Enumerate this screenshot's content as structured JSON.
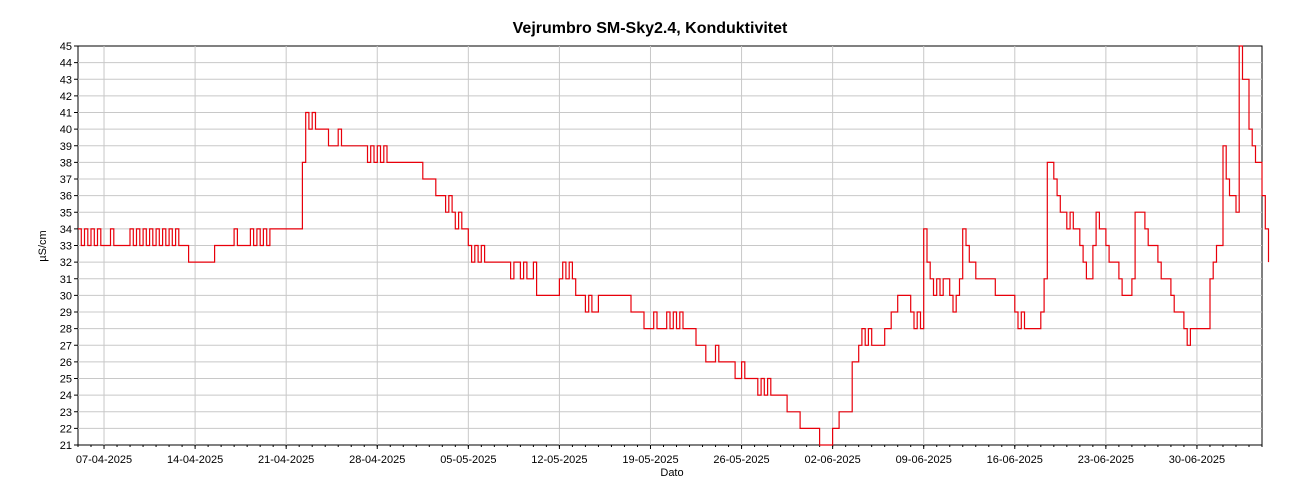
{
  "chart_data": {
    "type": "line",
    "title": "Vejrumbro SM-Sky2.4, Konduktivitet",
    "xlabel": "Dato",
    "ylabel": "µS/cm",
    "ylim": [
      21,
      45
    ],
    "y_ticks": [
      21,
      22,
      23,
      24,
      25,
      26,
      27,
      28,
      29,
      30,
      31,
      32,
      33,
      34,
      35,
      36,
      37,
      38,
      39,
      40,
      41,
      42,
      43,
      44,
      45
    ],
    "x_range": [
      "2025-04-05",
      "2025-07-05"
    ],
    "x_ticks": [
      "07-04-2025",
      "14-04-2025",
      "21-04-2025",
      "28-04-2025",
      "05-05-2025",
      "12-05-2025",
      "19-05-2025",
      "26-05-2025",
      "02-06-2025",
      "09-06-2025",
      "16-06-2025",
      "23-06-2025",
      "30-06-2025"
    ],
    "grid": true,
    "legend": "none",
    "series": [
      {
        "color": "#e8000b",
        "points": [
          [
            "2025-04-05 00:00",
            34
          ],
          [
            "2025-04-05 06:00",
            33
          ],
          [
            "2025-04-05 12:00",
            34
          ],
          [
            "2025-04-05 18:00",
            33
          ],
          [
            "2025-04-06 00:00",
            34
          ],
          [
            "2025-04-06 06:00",
            33
          ],
          [
            "2025-04-06 12:00",
            34
          ],
          [
            "2025-04-06 18:00",
            33
          ],
          [
            "2025-04-07 00:00",
            33
          ],
          [
            "2025-04-07 12:00",
            34
          ],
          [
            "2025-04-07 18:00",
            33
          ],
          [
            "2025-04-08 00:00",
            33
          ],
          [
            "2025-04-08 12:00",
            33
          ],
          [
            "2025-04-09 00:00",
            34
          ],
          [
            "2025-04-09 06:00",
            33
          ],
          [
            "2025-04-09 12:00",
            34
          ],
          [
            "2025-04-09 18:00",
            33
          ],
          [
            "2025-04-10 00:00",
            34
          ],
          [
            "2025-04-10 06:00",
            33
          ],
          [
            "2025-04-10 12:00",
            34
          ],
          [
            "2025-04-10 18:00",
            33
          ],
          [
            "2025-04-11 00:00",
            34
          ],
          [
            "2025-04-11 06:00",
            33
          ],
          [
            "2025-04-11 12:00",
            34
          ],
          [
            "2025-04-11 18:00",
            33
          ],
          [
            "2025-04-12 00:00",
            34
          ],
          [
            "2025-04-12 06:00",
            33
          ],
          [
            "2025-04-12 12:00",
            34
          ],
          [
            "2025-04-12 18:00",
            33
          ],
          [
            "2025-04-13 00:00",
            33
          ],
          [
            "2025-04-13 12:00",
            32
          ],
          [
            "2025-04-14 00:00",
            32
          ],
          [
            "2025-04-14 12:00",
            32
          ],
          [
            "2025-04-15 00:00",
            32
          ],
          [
            "2025-04-15 12:00",
            33
          ],
          [
            "2025-04-16 00:00",
            33
          ],
          [
            "2025-04-16 12:00",
            33
          ],
          [
            "2025-04-17 00:00",
            34
          ],
          [
            "2025-04-17 06:00",
            33
          ],
          [
            "2025-04-17 12:00",
            33
          ],
          [
            "2025-04-18 00:00",
            33
          ],
          [
            "2025-04-18 06:00",
            34
          ],
          [
            "2025-04-18 12:00",
            33
          ],
          [
            "2025-04-18 18:00",
            34
          ],
          [
            "2025-04-19 00:00",
            33
          ],
          [
            "2025-04-19 06:00",
            34
          ],
          [
            "2025-04-19 12:00",
            33
          ],
          [
            "2025-04-19 18:00",
            34
          ],
          [
            "2025-04-20 00:00",
            34
          ],
          [
            "2025-04-20 12:00",
            34
          ],
          [
            "2025-04-21 00:00",
            34
          ],
          [
            "2025-04-21 12:00",
            34
          ],
          [
            "2025-04-22 00:00",
            34
          ],
          [
            "2025-04-22 06:00",
            38
          ],
          [
            "2025-04-22 12:00",
            41
          ],
          [
            "2025-04-22 18:00",
            40
          ],
          [
            "2025-04-23 00:00",
            41
          ],
          [
            "2025-04-23 06:00",
            40
          ],
          [
            "2025-04-23 12:00",
            40
          ],
          [
            "2025-04-24 00:00",
            40
          ],
          [
            "2025-04-24 06:00",
            39
          ],
          [
            "2025-04-24 12:00",
            39
          ],
          [
            "2025-04-25 00:00",
            40
          ],
          [
            "2025-04-25 06:00",
            39
          ],
          [
            "2025-04-25 12:00",
            39
          ],
          [
            "2025-04-26 00:00",
            39
          ],
          [
            "2025-04-26 12:00",
            39
          ],
          [
            "2025-04-27 00:00",
            39
          ],
          [
            "2025-04-27 06:00",
            38
          ],
          [
            "2025-04-27 12:00",
            39
          ],
          [
            "2025-04-27 18:00",
            38
          ],
          [
            "2025-04-28 00:00",
            39
          ],
          [
            "2025-04-28 06:00",
            38
          ],
          [
            "2025-04-28 12:00",
            39
          ],
          [
            "2025-04-28 18:00",
            38
          ],
          [
            "2025-04-29 00:00",
            38
          ],
          [
            "2025-04-29 12:00",
            38
          ],
          [
            "2025-04-30 00:00",
            38
          ],
          [
            "2025-04-30 12:00",
            38
          ],
          [
            "2025-05-01 00:00",
            38
          ],
          [
            "2025-05-01 12:00",
            37
          ],
          [
            "2025-05-02 00:00",
            37
          ],
          [
            "2025-05-02 12:00",
            36
          ],
          [
            "2025-05-03 00:00",
            36
          ],
          [
            "2025-05-03 06:00",
            35
          ],
          [
            "2025-05-03 12:00",
            36
          ],
          [
            "2025-05-03 18:00",
            35
          ],
          [
            "2025-05-04 00:00",
            34
          ],
          [
            "2025-05-04 06:00",
            35
          ],
          [
            "2025-05-04 12:00",
            34
          ],
          [
            "2025-05-05 00:00",
            33
          ],
          [
            "2025-05-05 06:00",
            32
          ],
          [
            "2025-05-05 12:00",
            33
          ],
          [
            "2025-05-05 18:00",
            32
          ],
          [
            "2025-05-06 00:00",
            33
          ],
          [
            "2025-05-06 06:00",
            32
          ],
          [
            "2025-05-06 12:00",
            32
          ],
          [
            "2025-05-07 00:00",
            32
          ],
          [
            "2025-05-07 12:00",
            32
          ],
          [
            "2025-05-08 00:00",
            32
          ],
          [
            "2025-05-08 06:00",
            31
          ],
          [
            "2025-05-08 12:00",
            32
          ],
          [
            "2025-05-08 18:00",
            32
          ],
          [
            "2025-05-09 00:00",
            31
          ],
          [
            "2025-05-09 06:00",
            32
          ],
          [
            "2025-05-09 12:00",
            31
          ],
          [
            "2025-05-10 00:00",
            32
          ],
          [
            "2025-05-10 06:00",
            30
          ],
          [
            "2025-05-10 12:00",
            30
          ],
          [
            "2025-05-11 00:00",
            30
          ],
          [
            "2025-05-11 12:00",
            30
          ],
          [
            "2025-05-12 00:00",
            31
          ],
          [
            "2025-05-12 06:00",
            32
          ],
          [
            "2025-05-12 12:00",
            31
          ],
          [
            "2025-05-12 18:00",
            32
          ],
          [
            "2025-05-13 00:00",
            31
          ],
          [
            "2025-05-13 06:00",
            30
          ],
          [
            "2025-05-13 12:00",
            30
          ],
          [
            "2025-05-14 00:00",
            29
          ],
          [
            "2025-05-14 06:00",
            30
          ],
          [
            "2025-05-14 12:00",
            29
          ],
          [
            "2025-05-15 00:00",
            30
          ],
          [
            "2025-05-15 12:00",
            30
          ],
          [
            "2025-05-16 00:00",
            30
          ],
          [
            "2025-05-16 12:00",
            30
          ],
          [
            "2025-05-17 00:00",
            30
          ],
          [
            "2025-05-17 12:00",
            29
          ],
          [
            "2025-05-18 00:00",
            29
          ],
          [
            "2025-05-18 12:00",
            28
          ],
          [
            "2025-05-19 00:00",
            28
          ],
          [
            "2025-05-19 06:00",
            29
          ],
          [
            "2025-05-19 12:00",
            28
          ],
          [
            "2025-05-20 00:00",
            28
          ],
          [
            "2025-05-20 06:00",
            29
          ],
          [
            "2025-05-20 12:00",
            28
          ],
          [
            "2025-05-20 18:00",
            29
          ],
          [
            "2025-05-21 00:00",
            28
          ],
          [
            "2025-05-21 06:00",
            29
          ],
          [
            "2025-05-21 12:00",
            28
          ],
          [
            "2025-05-22 00:00",
            28
          ],
          [
            "2025-05-22 12:00",
            27
          ],
          [
            "2025-05-23 00:00",
            27
          ],
          [
            "2025-05-23 06:00",
            26
          ],
          [
            "2025-05-23 12:00",
            26
          ],
          [
            "2025-05-24 00:00",
            27
          ],
          [
            "2025-05-24 06:00",
            26
          ],
          [
            "2025-05-24 12:00",
            26
          ],
          [
            "2025-05-25 00:00",
            26
          ],
          [
            "2025-05-25 12:00",
            25
          ],
          [
            "2025-05-26 00:00",
            26
          ],
          [
            "2025-05-26 06:00",
            25
          ],
          [
            "2025-05-26 12:00",
            25
          ],
          [
            "2025-05-27 00:00",
            25
          ],
          [
            "2025-05-27 06:00",
            24
          ],
          [
            "2025-05-27 12:00",
            25
          ],
          [
            "2025-05-27 18:00",
            24
          ],
          [
            "2025-05-28 00:00",
            25
          ],
          [
            "2025-05-28 06:00",
            24
          ],
          [
            "2025-05-28 12:00",
            24
          ],
          [
            "2025-05-29 00:00",
            24
          ],
          [
            "2025-05-29 12:00",
            23
          ],
          [
            "2025-05-30 00:00",
            23
          ],
          [
            "2025-05-30 12:00",
            22
          ],
          [
            "2025-05-31 00:00",
            22
          ],
          [
            "2025-05-31 12:00",
            22
          ],
          [
            "2025-06-01 00:00",
            21
          ],
          [
            "2025-06-01 12:00",
            21
          ],
          [
            "2025-06-02 00:00",
            22
          ],
          [
            "2025-06-02 12:00",
            23
          ],
          [
            "2025-06-03 00:00",
            23
          ],
          [
            "2025-06-03 12:00",
            26
          ],
          [
            "2025-06-04 00:00",
            27
          ],
          [
            "2025-06-04 06:00",
            28
          ],
          [
            "2025-06-04 12:00",
            27
          ],
          [
            "2025-06-04 18:00",
            28
          ],
          [
            "2025-06-05 00:00",
            27
          ],
          [
            "2025-06-05 12:00",
            27
          ],
          [
            "2025-06-06 00:00",
            28
          ],
          [
            "2025-06-06 12:00",
            29
          ],
          [
            "2025-06-07 00:00",
            30
          ],
          [
            "2025-06-07 12:00",
            30
          ],
          [
            "2025-06-08 00:00",
            29
          ],
          [
            "2025-06-08 06:00",
            28
          ],
          [
            "2025-06-08 12:00",
            29
          ],
          [
            "2025-06-08 18:00",
            28
          ],
          [
            "2025-06-09 00:00",
            34
          ],
          [
            "2025-06-09 06:00",
            32
          ],
          [
            "2025-06-09 12:00",
            31
          ],
          [
            "2025-06-09 18:00",
            30
          ],
          [
            "2025-06-10 00:00",
            31
          ],
          [
            "2025-06-10 06:00",
            30
          ],
          [
            "2025-06-10 12:00",
            31
          ],
          [
            "2025-06-11 00:00",
            30
          ],
          [
            "2025-06-11 06:00",
            29
          ],
          [
            "2025-06-11 12:00",
            30
          ],
          [
            "2025-06-11 18:00",
            31
          ],
          [
            "2025-06-12 00:00",
            34
          ],
          [
            "2025-06-12 06:00",
            33
          ],
          [
            "2025-06-12 12:00",
            32
          ],
          [
            "2025-06-13 00:00",
            31
          ],
          [
            "2025-06-13 12:00",
            31
          ],
          [
            "2025-06-14 00:00",
            31
          ],
          [
            "2025-06-14 12:00",
            30
          ],
          [
            "2025-06-15 00:00",
            30
          ],
          [
            "2025-06-15 12:00",
            30
          ],
          [
            "2025-06-16 00:00",
            29
          ],
          [
            "2025-06-16 06:00",
            28
          ],
          [
            "2025-06-16 12:00",
            29
          ],
          [
            "2025-06-16 18:00",
            28
          ],
          [
            "2025-06-17 00:00",
            28
          ],
          [
            "2025-06-17 12:00",
            28
          ],
          [
            "2025-06-18 00:00",
            29
          ],
          [
            "2025-06-18 06:00",
            31
          ],
          [
            "2025-06-18 12:00",
            38
          ],
          [
            "2025-06-19 00:00",
            37
          ],
          [
            "2025-06-19 06:00",
            36
          ],
          [
            "2025-06-19 12:00",
            35
          ],
          [
            "2025-06-20 00:00",
            34
          ],
          [
            "2025-06-20 06:00",
            35
          ],
          [
            "2025-06-20 12:00",
            34
          ],
          [
            "2025-06-21 00:00",
            33
          ],
          [
            "2025-06-21 06:00",
            32
          ],
          [
            "2025-06-21 12:00",
            31
          ],
          [
            "2025-06-22 00:00",
            33
          ],
          [
            "2025-06-22 06:00",
            35
          ],
          [
            "2025-06-22 12:00",
            34
          ],
          [
            "2025-06-23 00:00",
            33
          ],
          [
            "2025-06-23 06:00",
            32
          ],
          [
            "2025-06-23 12:00",
            32
          ],
          [
            "2025-06-24 00:00",
            31
          ],
          [
            "2025-06-24 06:00",
            30
          ],
          [
            "2025-06-24 12:00",
            30
          ],
          [
            "2025-06-25 00:00",
            31
          ],
          [
            "2025-06-25 06:00",
            35
          ],
          [
            "2025-06-25 12:00",
            35
          ],
          [
            "2025-06-26 00:00",
            34
          ],
          [
            "2025-06-26 06:00",
            33
          ],
          [
            "2025-06-26 12:00",
            33
          ],
          [
            "2025-06-27 00:00",
            32
          ],
          [
            "2025-06-27 06:00",
            31
          ],
          [
            "2025-06-27 12:00",
            31
          ],
          [
            "2025-06-28 00:00",
            30
          ],
          [
            "2025-06-28 06:00",
            29
          ],
          [
            "2025-06-28 12:00",
            29
          ],
          [
            "2025-06-29 00:00",
            28
          ],
          [
            "2025-06-29 06:00",
            27
          ],
          [
            "2025-06-29 12:00",
            28
          ],
          [
            "2025-06-30 00:00",
            28
          ],
          [
            "2025-06-30 12:00",
            28
          ],
          [
            "2025-07-01 00:00",
            31
          ],
          [
            "2025-07-01 06:00",
            32
          ],
          [
            "2025-07-01 12:00",
            33
          ],
          [
            "2025-07-02 00:00",
            39
          ],
          [
            "2025-07-02 06:00",
            37
          ],
          [
            "2025-07-02 12:00",
            36
          ],
          [
            "2025-07-03 00:00",
            35
          ],
          [
            "2025-07-03 06:00",
            45
          ],
          [
            "2025-07-03 12:00",
            43
          ],
          [
            "2025-07-04 00:00",
            40
          ],
          [
            "2025-07-04 06:00",
            39
          ],
          [
            "2025-07-04 12:00",
            38
          ],
          [
            "2025-07-05 00:00",
            36
          ],
          [
            "2025-07-05 06:00",
            34
          ],
          [
            "2025-07-05 12:00",
            32
          ]
        ]
      }
    ]
  }
}
